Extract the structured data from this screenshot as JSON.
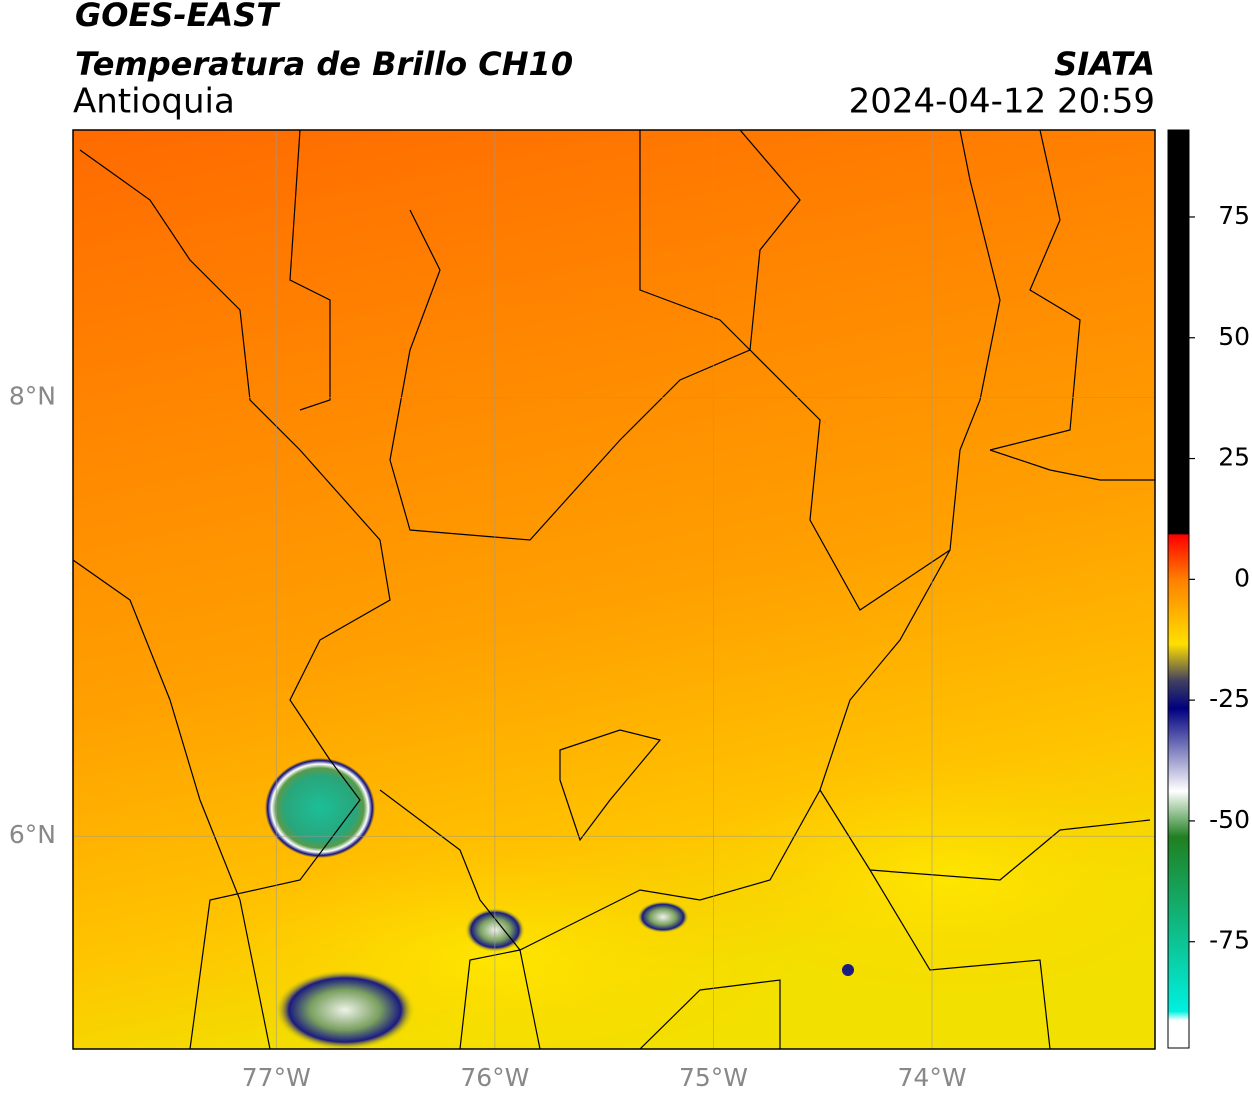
{
  "header": {
    "title": "GOES-EAST",
    "subtitle": "Temperatura de Brillo CH10",
    "region": "Antioquia",
    "source": "SIATA",
    "timestamp": "2024-04-12 20:59"
  },
  "map": {
    "xlim": [
      -77.93,
      -72.98
    ],
    "ylim": [
      5.03,
      9.22
    ],
    "xticks": [
      {
        "value": -77,
        "label": "77°W"
      },
      {
        "value": -76,
        "label": "76°W"
      },
      {
        "value": -75,
        "label": "75°W"
      },
      {
        "value": -74,
        "label": "74°W"
      }
    ],
    "yticks": [
      {
        "value": 8,
        "label": "8°N"
      },
      {
        "value": 6,
        "label": "6°N"
      }
    ],
    "grid": true
  },
  "colorbar": {
    "lim": [
      -97,
      93
    ],
    "ticks": [
      75,
      50,
      25,
      0,
      -25,
      -50,
      -75
    ]
  }
}
